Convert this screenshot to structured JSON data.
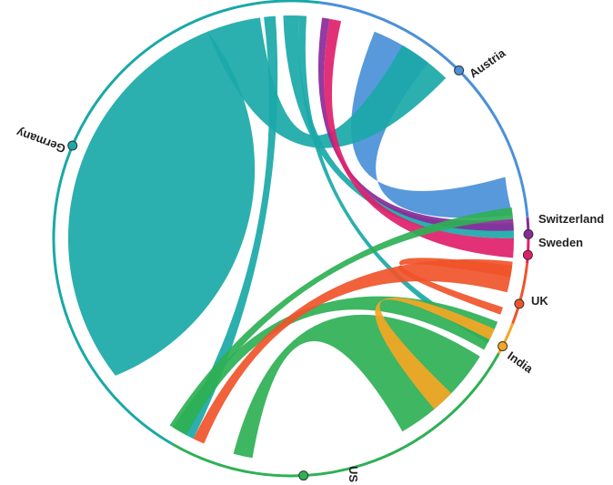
{
  "nodes": [
    {
      "id": "austria",
      "label": "Austria",
      "color": "#4a90d9"
    },
    {
      "id": "switzerland",
      "label": "Switzerland",
      "color": "#8a2a9a"
    },
    {
      "id": "sweden",
      "label": "Sweden",
      "color": "#e0206a"
    },
    {
      "id": "uk",
      "label": "UK",
      "color": "#f0542a"
    },
    {
      "id": "india",
      "label": "India",
      "color": "#f5a623"
    },
    {
      "id": "us",
      "label": "US",
      "color": "#2eb055"
    },
    {
      "id": "germany",
      "label": "Germany",
      "color": "#1aa8a8"
    }
  ],
  "chords": [
    {
      "from": "germany",
      "to": "germany"
    },
    {
      "from": "austria",
      "to": "austria"
    },
    {
      "from": "us",
      "to": "us"
    },
    {
      "from": "uk",
      "to": "uk"
    },
    {
      "from": "germany",
      "to": "austria"
    },
    {
      "from": "germany",
      "to": "us"
    },
    {
      "from": "germany",
      "to": "switzerland"
    },
    {
      "from": "germany",
      "to": "india"
    },
    {
      "from": "switzerland",
      "to": "austria"
    },
    {
      "from": "sweden",
      "to": "austria"
    },
    {
      "from": "us",
      "to": "uk"
    },
    {
      "from": "us",
      "to": "austria"
    },
    {
      "from": "uk",
      "to": "us"
    },
    {
      "from": "india",
      "to": "us"
    }
  ]
}
